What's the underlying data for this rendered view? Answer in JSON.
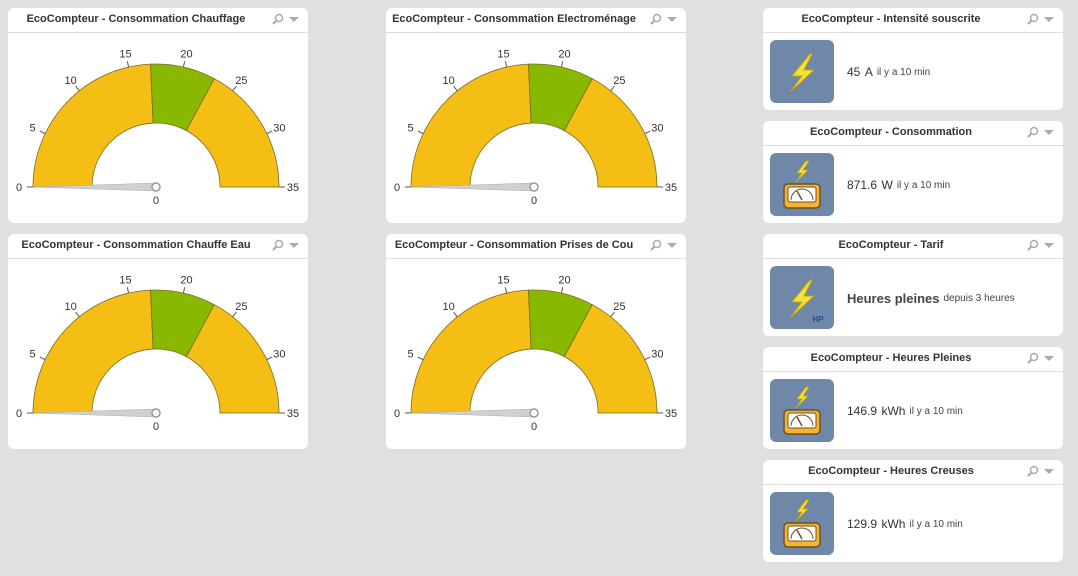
{
  "gauges": [
    {
      "title": "EcoCompteur - Consommation Chauffage",
      "value": "0"
    },
    {
      "title": "EcoCompteur - Consommation Electroménage",
      "value": "0"
    },
    {
      "title": "EcoCompteur - Consommation Chauffe Eau",
      "value": "0"
    },
    {
      "title": "EcoCompteur - Consommation Prises de Cou",
      "value": "0"
    }
  ],
  "gauge_scale": {
    "min": 0,
    "max": 35,
    "ticks": [
      "0",
      "5",
      "10",
      "15",
      "20",
      "25",
      "30",
      "35"
    ],
    "bands": [
      {
        "from": 0,
        "to": 17,
        "color": "#f5be14"
      },
      {
        "from": 17,
        "to": 23,
        "color": "#88b800"
      },
      {
        "from": 23,
        "to": 35,
        "color": "#f5be14"
      }
    ]
  },
  "tiles": [
    {
      "title": "EcoCompteur - Intensité souscrite",
      "icon": "bolt-icon",
      "value": "45",
      "unit": "A",
      "ago": "il y a 10 min"
    },
    {
      "title": "EcoCompteur - Consommation",
      "icon": "meter-icon",
      "value": "871.6",
      "unit": "W",
      "ago": "il y a 10 min"
    },
    {
      "title": "EcoCompteur - Tarif",
      "icon": "bolt-hp-icon",
      "icon_text": "HP",
      "value": "Heures pleines",
      "unit": "",
      "ago": "depuis 3 heures"
    },
    {
      "title": "EcoCompteur - Heures Pleines",
      "icon": "meter-icon",
      "value": "146.9",
      "unit": "kWh",
      "ago": "il y a 10 min"
    },
    {
      "title": "EcoCompteur - Heures Creuses",
      "icon": "meter-icon",
      "value": "129.9",
      "unit": "kWh",
      "ago": "il y a 10 min"
    }
  ],
  "colors": {
    "accent": "#f5be14",
    "green": "#88b800",
    "tile_icon_bg": "#6f88aa",
    "page_bg": "#e0e0e0"
  }
}
